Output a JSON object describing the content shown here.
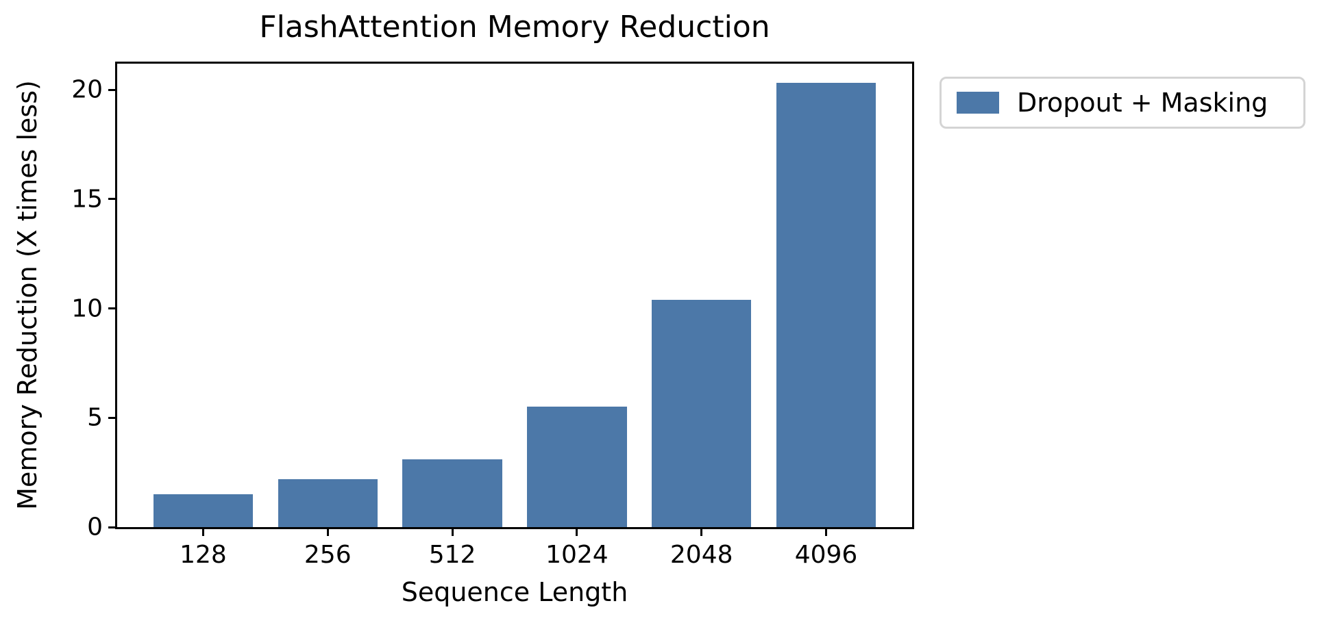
{
  "chart_data": {
    "type": "bar",
    "title": "FlashAttention Memory Reduction",
    "xlabel": "Sequence Length",
    "ylabel": "Memory Reduction (X times less)",
    "categories": [
      "128",
      "256",
      "512",
      "1024",
      "2048",
      "4096"
    ],
    "series": [
      {
        "name": "Dropout + Masking",
        "values": [
          1.5,
          2.2,
          3.1,
          5.5,
          10.4,
          20.3
        ]
      }
    ],
    "legend": [
      "Dropout + Masking"
    ],
    "legend_position": "outside-upper-right",
    "y_ticks": [
      0,
      5,
      10,
      15,
      20
    ],
    "ylim": [
      0,
      21.19
    ],
    "xlim": [
      -0.69,
      5.69
    ],
    "bar_width": 0.8,
    "grid": false,
    "colors": {
      "bar": "#4C78A8",
      "spine": "#000000",
      "text": "#000000",
      "legend_border": "#d4d4d4",
      "background": "#ffffff"
    }
  }
}
